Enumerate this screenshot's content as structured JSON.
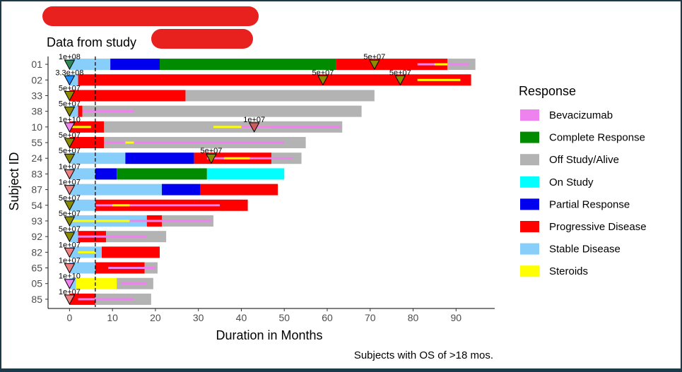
{
  "chart_data": {
    "type": "swimmer",
    "title": "Data from study",
    "caption": "Subjects with OS of >18 mos.",
    "xlabel": "Duration in Months",
    "ylabel": "Subject ID",
    "xlim": [
      -5,
      99
    ],
    "xticks": [
      0,
      10,
      20,
      30,
      40,
      50,
      60,
      70,
      80,
      90
    ],
    "reference_line_x": 6,
    "grid": false,
    "legend": {
      "title": "Response",
      "position": "right",
      "items": [
        {
          "label": "Bevacizumab",
          "color": "#ee82ee"
        },
        {
          "label": "Complete Response",
          "color": "#008b00"
        },
        {
          "label": "Off Study/Alive",
          "color": "#b3b3b3"
        },
        {
          "label": "On Study",
          "color": "#00ffff"
        },
        {
          "label": "Partial Response",
          "color": "#0000ee"
        },
        {
          "label": "Progressive Disease",
          "color": "#ff0000"
        },
        {
          "label": "Stable Disease",
          "color": "#87cefa"
        },
        {
          "label": "Steroids",
          "color": "#ffff00"
        }
      ]
    },
    "subjects": [
      {
        "id": "01",
        "segments": [
          [
            0,
            9.5,
            "Stable Disease"
          ],
          [
            9.5,
            21,
            "Partial Response"
          ],
          [
            21,
            62,
            "Complete Response"
          ],
          [
            62,
            88,
            "Progressive Disease"
          ],
          [
            88,
            94.5,
            "Off Study/Alive"
          ]
        ],
        "thin": [
          [
            81,
            93,
            "Bevacizumab"
          ],
          [
            85,
            88,
            "Steroids"
          ]
        ],
        "markers": [
          {
            "x": 0,
            "label": "1e+08",
            "color": "#2e8b57"
          },
          {
            "x": 71,
            "label": "5e+07",
            "color": "#8b8b00"
          }
        ]
      },
      {
        "id": "02",
        "segments": [
          [
            0,
            2,
            "Stable Disease"
          ],
          [
            2,
            93.5,
            "Progressive Disease"
          ]
        ],
        "thin": [
          [
            81,
            91,
            "Steroids"
          ]
        ],
        "markers": [
          {
            "x": 0,
            "label": "3.3e+08",
            "color": "#1e90ff"
          },
          {
            "x": 59,
            "label": "5e+07",
            "color": "#8b8b00"
          },
          {
            "x": 77,
            "label": "5e+07",
            "color": "#8b8b00"
          }
        ]
      },
      {
        "id": "33",
        "segments": [
          [
            0,
            27,
            "Progressive Disease"
          ],
          [
            27,
            71,
            "Off Study/Alive"
          ]
        ],
        "thin": [],
        "markers": [
          {
            "x": 0,
            "label": "5e+07",
            "color": "#8b8b00"
          }
        ]
      },
      {
        "id": "38",
        "segments": [
          [
            0,
            2,
            "Stable Disease"
          ],
          [
            2,
            3,
            "Progressive Disease"
          ],
          [
            3,
            68,
            "Off Study/Alive"
          ]
        ],
        "thin": [
          [
            3,
            15,
            "Bevacizumab"
          ]
        ],
        "markers": [
          {
            "x": 0,
            "label": "5e+07",
            "color": "#8b8b00"
          }
        ]
      },
      {
        "id": "10",
        "segments": [
          [
            0,
            8,
            "Progressive Disease"
          ],
          [
            8,
            63.5,
            "Off Study/Alive"
          ]
        ],
        "thin": [
          [
            0,
            5,
            "Steroids"
          ],
          [
            33.5,
            47,
            "Steroids"
          ],
          [
            40,
            63,
            "Bevacizumab"
          ]
        ],
        "markers": [
          {
            "x": 0,
            "label": "1e+10",
            "color": "#ee82ee"
          },
          {
            "x": 43,
            "label": "1e+07",
            "color": "#cd5c5c"
          }
        ]
      },
      {
        "id": "55",
        "segments": [
          [
            0,
            8,
            "Progressive Disease"
          ],
          [
            8,
            55,
            "Off Study/Alive"
          ]
        ],
        "thin": [
          [
            8,
            50,
            "Bevacizumab"
          ],
          [
            13,
            15,
            "Steroids"
          ]
        ],
        "markers": [
          {
            "x": 0,
            "label": "5e+07",
            "color": "#8b8b00"
          }
        ]
      },
      {
        "id": "24",
        "segments": [
          [
            0,
            13,
            "Stable Disease"
          ],
          [
            13,
            29,
            "Partial Response"
          ],
          [
            29,
            47,
            "Progressive Disease"
          ],
          [
            47,
            54,
            "Off Study/Alive"
          ]
        ],
        "thin": [
          [
            32,
            52,
            "Bevacizumab"
          ],
          [
            36,
            42,
            "Steroids"
          ]
        ],
        "markers": [
          {
            "x": 0,
            "label": "5e+07",
            "color": "#8b8b00"
          },
          {
            "x": 33,
            "label": "5e+07",
            "color": "#8b8b00"
          }
        ]
      },
      {
        "id": "83",
        "segments": [
          [
            0,
            6,
            "Stable Disease"
          ],
          [
            6,
            11,
            "Partial Response"
          ],
          [
            11,
            32,
            "Complete Response"
          ],
          [
            32,
            50,
            "On Study"
          ]
        ],
        "thin": [],
        "markers": [
          {
            "x": 0,
            "label": "1e+07",
            "color": "#f08080"
          }
        ]
      },
      {
        "id": "87",
        "segments": [
          [
            0,
            21.5,
            "Stable Disease"
          ],
          [
            21.5,
            30.5,
            "Partial Response"
          ],
          [
            30.5,
            48.5,
            "Progressive Disease"
          ]
        ],
        "thin": [],
        "markers": [
          {
            "x": 0,
            "label": "1e+07",
            "color": "#f08080"
          }
        ]
      },
      {
        "id": "54",
        "segments": [
          [
            0,
            6,
            "Stable Disease"
          ],
          [
            6,
            41.5,
            "Progressive Disease"
          ]
        ],
        "thin": [
          [
            6,
            35,
            "Bevacizumab"
          ],
          [
            10,
            14,
            "Steroids"
          ]
        ],
        "markers": [
          {
            "x": 0,
            "label": "5e+07",
            "color": "#8b8b00"
          }
        ]
      },
      {
        "id": "93",
        "segments": [
          [
            0,
            18,
            "Stable Disease"
          ],
          [
            18,
            21.5,
            "Progressive Disease"
          ],
          [
            21.5,
            33.5,
            "Off Study/Alive"
          ]
        ],
        "thin": [
          [
            0,
            21,
            "Steroids"
          ],
          [
            14,
            33,
            "Bevacizumab"
          ]
        ],
        "markers": [
          {
            "x": 0,
            "label": "5e+07",
            "color": "#8b8b00"
          }
        ]
      },
      {
        "id": "92",
        "segments": [
          [
            0,
            2,
            "Stable Disease"
          ],
          [
            2,
            8.5,
            "Progressive Disease"
          ],
          [
            8.5,
            22.5,
            "Off Study/Alive"
          ]
        ],
        "thin": [
          [
            2,
            18,
            "Bevacizumab"
          ]
        ],
        "markers": [
          {
            "x": 0,
            "label": "5e+07",
            "color": "#8b8b00"
          }
        ]
      },
      {
        "id": "82",
        "segments": [
          [
            0,
            7.5,
            "Stable Disease"
          ],
          [
            7.5,
            21,
            "Progressive Disease"
          ]
        ],
        "thin": [
          [
            2,
            6,
            "Steroids"
          ]
        ],
        "markers": [
          {
            "x": 0,
            "label": "1e+07",
            "color": "#f08080"
          }
        ]
      },
      {
        "id": "65",
        "segments": [
          [
            0,
            6,
            "Stable Disease"
          ],
          [
            6,
            17.5,
            "Progressive Disease"
          ],
          [
            17.5,
            20.5,
            "Off Study/Alive"
          ]
        ],
        "thin": [
          [
            9,
            20,
            "Bevacizumab"
          ]
        ],
        "markers": [
          {
            "x": 0,
            "label": "1e+07",
            "color": "#f08080"
          }
        ]
      },
      {
        "id": "05",
        "segments": [
          [
            0,
            1.5,
            "Stable Disease"
          ],
          [
            1.5,
            11,
            "Steroids"
          ],
          [
            11,
            19.5,
            "Off Study/Alive"
          ]
        ],
        "thin": [
          [
            12,
            18,
            "Bevacizumab"
          ]
        ],
        "markers": [
          {
            "x": 0,
            "label": "1e+10",
            "color": "#ee82ee"
          }
        ]
      },
      {
        "id": "85",
        "segments": [
          [
            0,
            6,
            "Progressive Disease"
          ],
          [
            6,
            19,
            "Off Study/Alive"
          ]
        ],
        "thin": [
          [
            2,
            15,
            "Bevacizumab"
          ]
        ],
        "markers": [
          {
            "x": 0,
            "label": "1e+07",
            "color": "#f08080"
          }
        ]
      }
    ]
  }
}
